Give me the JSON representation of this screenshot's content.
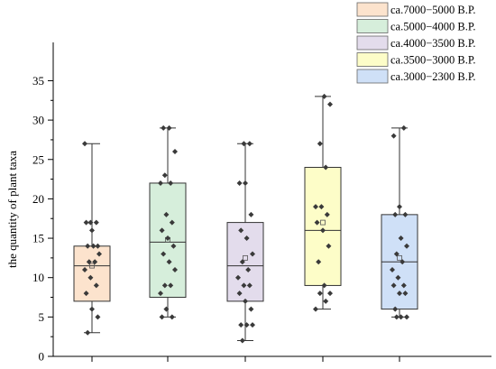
{
  "chart_data": {
    "type": "box",
    "title": "",
    "xlabel": "",
    "ylabel": "the quantity of plant taxa",
    "ylim": [
      0,
      37
    ],
    "yticks": [
      0,
      5,
      10,
      15,
      20,
      25,
      30,
      35
    ],
    "grid": false,
    "legend_position": "top-right",
    "series": [
      {
        "name": "ca.7000−5000 B.P.",
        "color": "#fce3cd",
        "min": 3,
        "q1": 7,
        "median": 11.5,
        "q3": 14,
        "max": 27,
        "mean": 11.5,
        "points": [
          27,
          17,
          17,
          17,
          16,
          14,
          14,
          14,
          13,
          12,
          12,
          11,
          10,
          9,
          8,
          6,
          5,
          3
        ]
      },
      {
        "name": "ca.5000−4000 B.P.",
        "color": "#d6eedb",
        "min": 5,
        "q1": 7.5,
        "median": 14.5,
        "q3": 22,
        "max": 29,
        "mean": 14.8,
        "points": [
          29,
          29,
          26,
          23,
          22,
          22,
          18,
          17,
          16,
          15,
          14,
          13,
          12,
          11,
          9,
          9,
          8,
          6,
          5,
          5
        ]
      },
      {
        "name": "ca.4000−3500 B.P.",
        "color": "#e3dcec",
        "min": 2,
        "q1": 7,
        "median": 11.5,
        "q3": 17,
        "max": 27,
        "mean": 12.5,
        "points": [
          27,
          27,
          22,
          22,
          18,
          16,
          15,
          13,
          12,
          11,
          10,
          9,
          9,
          8,
          7,
          6,
          4,
          4,
          4,
          2
        ]
      },
      {
        "name": "ca.3500−3000 B.P.",
        "color": "#fdfdc8",
        "min": 6,
        "q1": 9,
        "median": 16,
        "q3": 24,
        "max": 33,
        "mean": 17,
        "points": [
          33,
          32,
          27,
          24,
          19,
          19,
          18,
          17,
          16,
          14,
          12,
          9,
          8,
          8,
          7,
          6
        ]
      },
      {
        "name": "ca.3000−2300 B.P.",
        "color": "#cfe0f7",
        "min": 5,
        "q1": 6,
        "median": 12,
        "q3": 18,
        "max": 29,
        "mean": 12.5,
        "points": [
          29,
          28,
          19,
          18,
          18,
          15,
          14,
          13,
          12,
          11,
          10,
          9,
          9,
          8,
          8,
          6,
          5,
          5,
          5
        ]
      }
    ]
  }
}
